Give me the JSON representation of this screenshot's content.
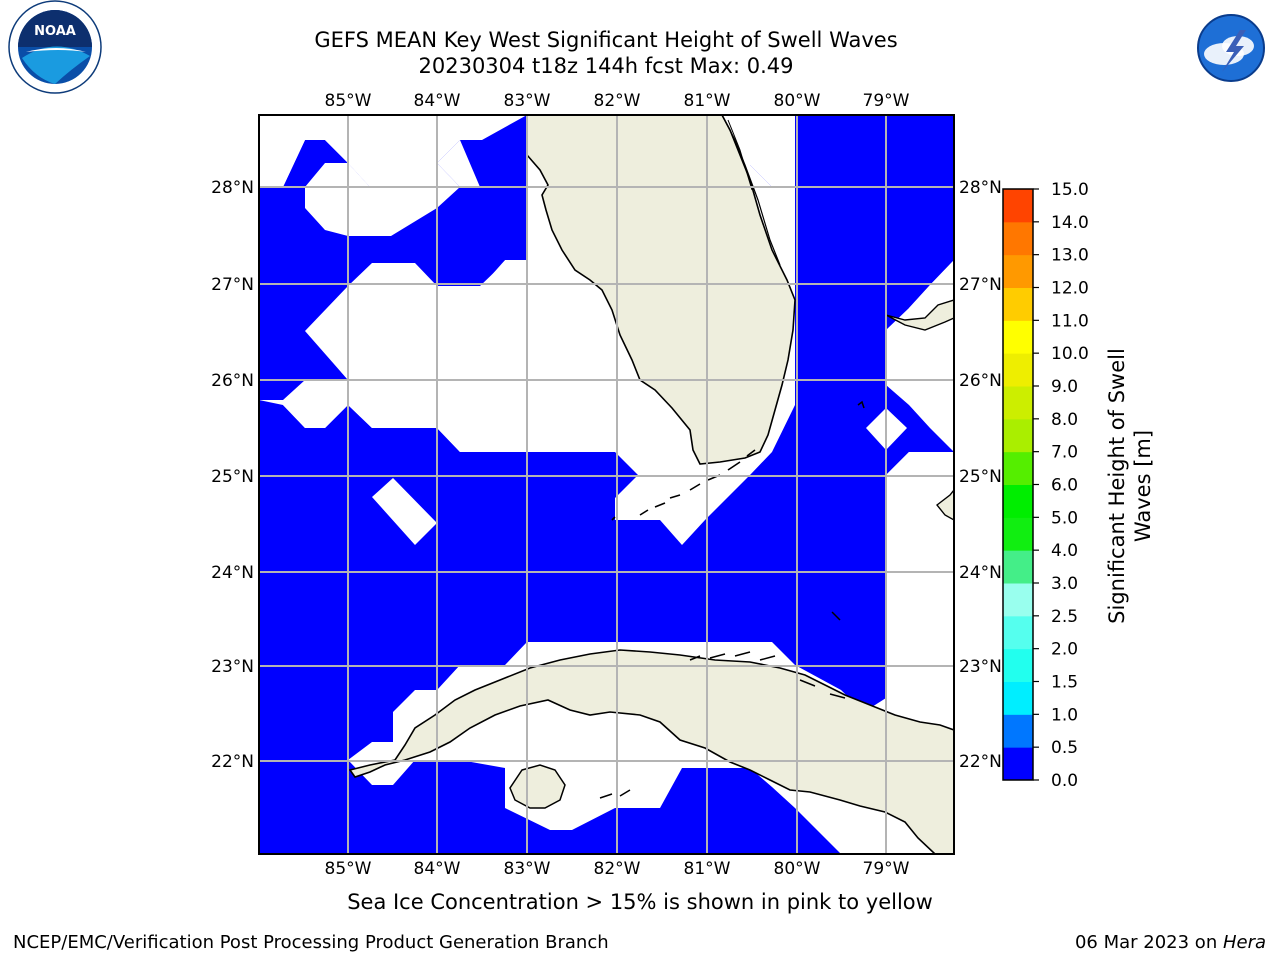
{
  "title_line1": "GEFS MEAN Key West Significant Height of Swell Waves",
  "title_line2": "20230304 t18z 144h fcst   Max: 0.49",
  "logos": {
    "left": {
      "name": "NOAA",
      "ring_text": "NATIONAL OCEANIC AND ATMOSPHERIC ADMINISTRATION • U.S. DEPARTMENT OF COMMERCE"
    },
    "right": {
      "ring_text": "NATIONAL WEATHER SERVICE"
    }
  },
  "map": {
    "lon_labels": [
      "85°W",
      "84°W",
      "83°W",
      "82°W",
      "81°W",
      "80°W",
      "79°W"
    ],
    "lat_labels": [
      "28°N",
      "27°N",
      "26°N",
      "25°N",
      "24°N",
      "23°N",
      "22°N"
    ],
    "lon_range": [
      -86.0,
      -78.25
    ],
    "lat_range": [
      21.05,
      28.75
    ],
    "grid": true,
    "colors": {
      "sea": "#0000ff",
      "land": "#eeeedd",
      "no_data": "#ffffff",
      "grid": "#b4b4b4"
    }
  },
  "colorbar": {
    "label": "Significant Height of Swell Waves [m]",
    "ticks": [
      "0.0",
      "0.5",
      "1.0",
      "1.5",
      "2.0",
      "2.5",
      "3.0",
      "4.0",
      "5.0",
      "6.0",
      "7.0",
      "8.0",
      "9.0",
      "10.0",
      "11.0",
      "12.0",
      "13.0",
      "14.0",
      "15.0"
    ],
    "colors": [
      "#0000ff",
      "#0077ff",
      "#00eeff",
      "#22ffee",
      "#55ffee",
      "#99ffee",
      "#44ee88",
      "#11ee11",
      "#00ee00",
      "#55ee00",
      "#aaee00",
      "#ccee00",
      "#eeee00",
      "#ffff00",
      "#ffcc00",
      "#ff9900",
      "#ff7700",
      "#ff4400",
      "#ff0000"
    ]
  },
  "note": "Sea Ice Concentration > 15% is shown in pink to yellow",
  "footer_left": "NCEP/EMC/Verification Post Processing Product Generation Branch",
  "footer_date": "06 Mar 2023 on ",
  "footer_machine": "Hera"
}
